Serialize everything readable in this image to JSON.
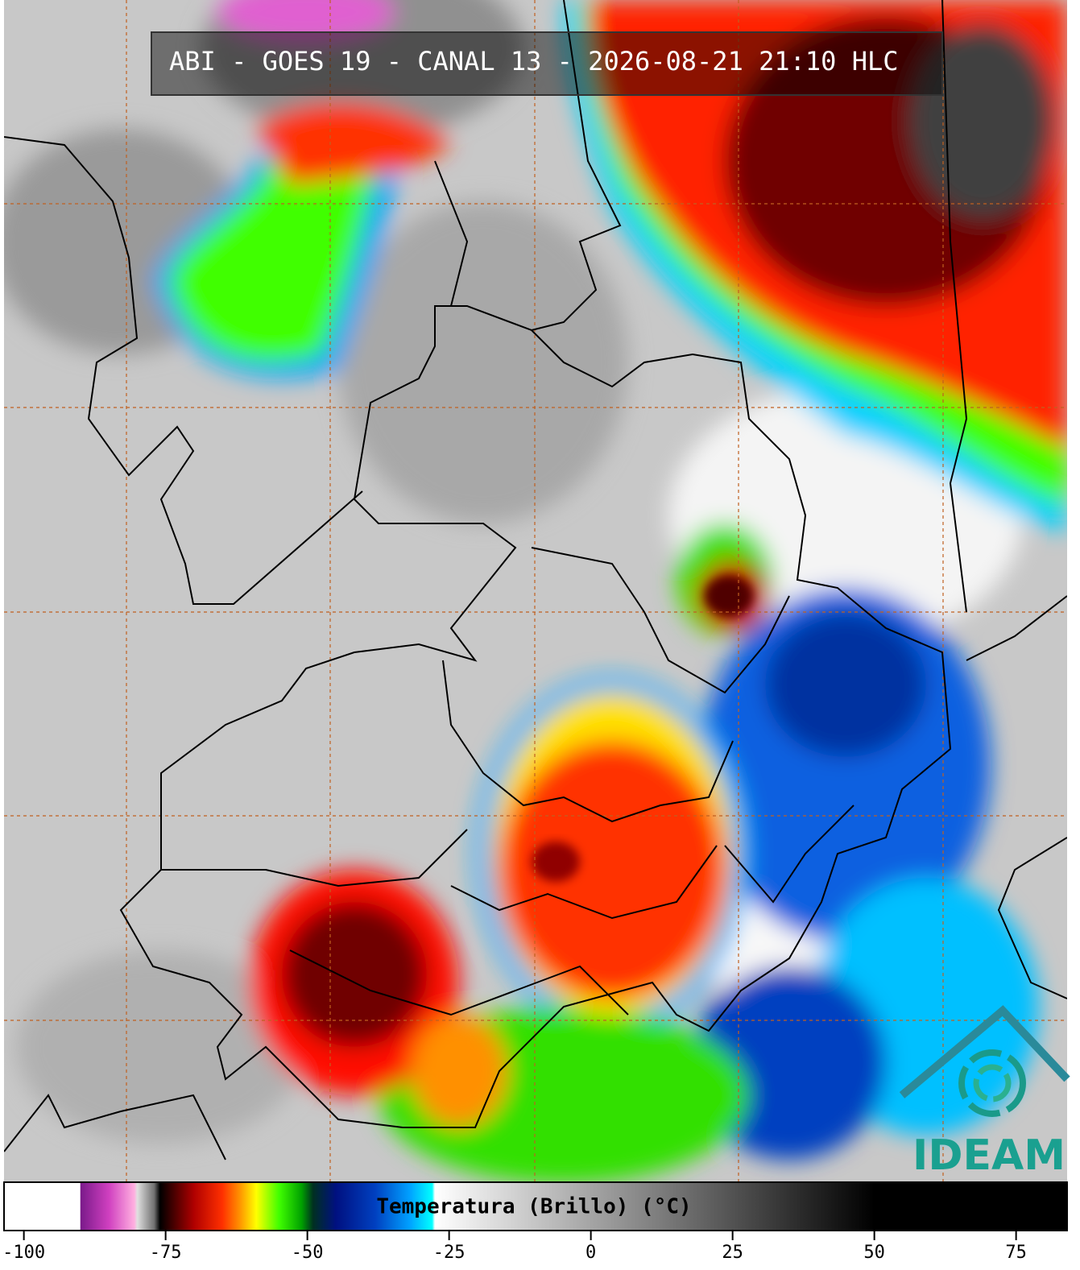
{
  "header": {
    "title": "ABI - GOES 19 - CANAL 13 - 2026-08-21 21:10 HLC"
  },
  "colorbar": {
    "label": "Temperatura (Brillo) (°C)",
    "lim": [
      -103.5,
      84
    ],
    "ticks": [
      -100,
      -75,
      -50,
      -25,
      0,
      25,
      50,
      75
    ],
    "stops": [
      {
        "value": -103.5,
        "color": "#ffffff"
      },
      {
        "value": -90.1,
        "color": "#ffffff"
      },
      {
        "value": -90,
        "color": "#7a1a8a"
      },
      {
        "value": -85,
        "color": "#d040c0"
      },
      {
        "value": -80.5,
        "color": "#ffb0e0"
      },
      {
        "value": -80,
        "color": "#e0e0e0"
      },
      {
        "value": -77,
        "color": "#707070"
      },
      {
        "value": -76,
        "color": "#000000"
      },
      {
        "value": -70,
        "color": "#b00000"
      },
      {
        "value": -65,
        "color": "#ff3000"
      },
      {
        "value": -62,
        "color": "#ff9000"
      },
      {
        "value": -59,
        "color": "#ffff00"
      },
      {
        "value": -55,
        "color": "#40ff00"
      },
      {
        "value": -51,
        "color": "#00a000"
      },
      {
        "value": -49,
        "color": "#003020"
      },
      {
        "value": -45,
        "color": "#001080"
      },
      {
        "value": -38,
        "color": "#0040c0"
      },
      {
        "value": -32,
        "color": "#00a0ff"
      },
      {
        "value": -28,
        "color": "#00ffff"
      },
      {
        "value": -27.5,
        "color": "#ffffff"
      },
      {
        "value": 50,
        "color": "#000000"
      },
      {
        "value": 84,
        "color": "#000000"
      }
    ]
  },
  "logo": {
    "text": "IDEAM"
  }
}
